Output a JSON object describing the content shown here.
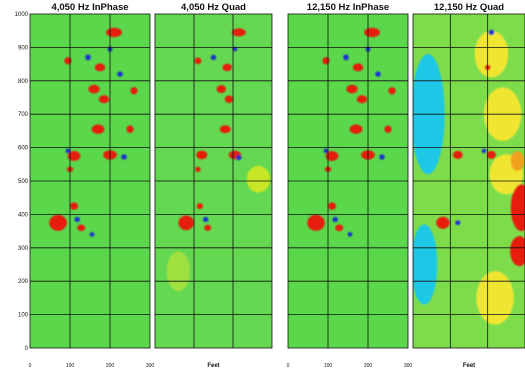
{
  "chart_data": {
    "type": "heatmap",
    "colormap": [
      "#1a32d2",
      "#1fc8e6",
      "#64dc48",
      "#3cd23c",
      "#c8e628",
      "#f0e632",
      "#f0a01e",
      "#e61e10"
    ],
    "panels": [
      {
        "title": "4,050 Hz InPhase",
        "xlabel": "",
        "x_ticks": [
          "0",
          "100",
          "200",
          "300"
        ],
        "y_ticks": [
          "1000",
          "900",
          "800",
          "700",
          "600",
          "500",
          "400",
          "300",
          "200",
          "100",
          "0"
        ],
        "xlim": [
          0,
          300
        ],
        "ylim": [
          0,
          1000
        ],
        "background": "#5ad74a",
        "features": [
          {
            "x": 210,
            "y": 945,
            "sx": 20,
            "sy": 14,
            "color": "#e61e10"
          },
          {
            "x": 95,
            "y": 860,
            "sx": 9,
            "sy": 11,
            "color": "#e61e10"
          },
          {
            "x": 175,
            "y": 840,
            "sx": 13,
            "sy": 12,
            "color": "#e61e10"
          },
          {
            "x": 145,
            "y": 870,
            "sx": 7,
            "sy": 9,
            "color": "#1a32d2"
          },
          {
            "x": 200,
            "y": 895,
            "sx": 6,
            "sy": 8,
            "color": "#1a32d2"
          },
          {
            "x": 225,
            "y": 820,
            "sx": 7,
            "sy": 8,
            "color": "#1a32d2"
          },
          {
            "x": 160,
            "y": 775,
            "sx": 14,
            "sy": 13,
            "color": "#e61e10"
          },
          {
            "x": 185,
            "y": 745,
            "sx": 13,
            "sy": 12,
            "color": "#e61e10"
          },
          {
            "x": 260,
            "y": 770,
            "sx": 9,
            "sy": 11,
            "color": "#e61e10"
          },
          {
            "x": 170,
            "y": 655,
            "sx": 16,
            "sy": 14,
            "color": "#e61e10"
          },
          {
            "x": 250,
            "y": 655,
            "sx": 9,
            "sy": 11,
            "color": "#e61e10"
          },
          {
            "x": 110,
            "y": 575,
            "sx": 16,
            "sy": 15,
            "color": "#e61e10"
          },
          {
            "x": 200,
            "y": 578,
            "sx": 17,
            "sy": 14,
            "color": "#e61e10"
          },
          {
            "x": 95,
            "y": 590,
            "sx": 6,
            "sy": 7,
            "color": "#1a32d2"
          },
          {
            "x": 235,
            "y": 572,
            "sx": 7,
            "sy": 8,
            "color": "#1a32d2"
          },
          {
            "x": 100,
            "y": 535,
            "sx": 8,
            "sy": 8,
            "color": "#e61e10"
          },
          {
            "x": 110,
            "y": 425,
            "sx": 10,
            "sy": 11,
            "color": "#e61e10"
          },
          {
            "x": 70,
            "y": 375,
            "sx": 22,
            "sy": 24,
            "color": "#e61e10"
          },
          {
            "x": 128,
            "y": 360,
            "sx": 10,
            "sy": 10,
            "color": "#e61e10"
          },
          {
            "x": 118,
            "y": 385,
            "sx": 7,
            "sy": 8,
            "color": "#1a32d2"
          },
          {
            "x": 155,
            "y": 340,
            "sx": 6,
            "sy": 7,
            "color": "#1a32d2"
          }
        ]
      },
      {
        "title": "4,050 Hz Quad",
        "xlabel": "Feet",
        "x_ticks": [],
        "y_ticks": [],
        "xlim": [
          0,
          300
        ],
        "ylim": [
          0,
          1000
        ],
        "background": "#64d850",
        "features": [
          {
            "x": 215,
            "y": 945,
            "sx": 18,
            "sy": 12,
            "color": "#e61e10"
          },
          {
            "x": 110,
            "y": 860,
            "sx": 9,
            "sy": 10,
            "color": "#e61e10"
          },
          {
            "x": 185,
            "y": 840,
            "sx": 12,
            "sy": 11,
            "color": "#e61e10"
          },
          {
            "x": 150,
            "y": 870,
            "sx": 7,
            "sy": 8,
            "color": "#1a32d2"
          },
          {
            "x": 205,
            "y": 895,
            "sx": 6,
            "sy": 7,
            "color": "#1a32d2"
          },
          {
            "x": 170,
            "y": 775,
            "sx": 12,
            "sy": 12,
            "color": "#e61e10"
          },
          {
            "x": 190,
            "y": 745,
            "sx": 11,
            "sy": 11,
            "color": "#e61e10"
          },
          {
            "x": 180,
            "y": 655,
            "sx": 14,
            "sy": 12,
            "color": "#e61e10"
          },
          {
            "x": 120,
            "y": 578,
            "sx": 14,
            "sy": 13,
            "color": "#e61e10"
          },
          {
            "x": 205,
            "y": 578,
            "sx": 16,
            "sy": 13,
            "color": "#e61e10"
          },
          {
            "x": 215,
            "y": 570,
            "sx": 7,
            "sy": 8,
            "color": "#1a32d2"
          },
          {
            "x": 110,
            "y": 535,
            "sx": 7,
            "sy": 8,
            "color": "#e61e10"
          },
          {
            "x": 115,
            "y": 425,
            "sx": 8,
            "sy": 9,
            "color": "#e61e10"
          },
          {
            "x": 80,
            "y": 375,
            "sx": 20,
            "sy": 22,
            "color": "#e61e10"
          },
          {
            "x": 135,
            "y": 360,
            "sx": 9,
            "sy": 9,
            "color": "#e61e10"
          },
          {
            "x": 130,
            "y": 385,
            "sx": 7,
            "sy": 8,
            "color": "#1a32d2"
          },
          {
            "x": 265,
            "y": 505,
            "sx": 30,
            "sy": 40,
            "color": "#c8e628"
          },
          {
            "x": 60,
            "y": 230,
            "sx": 30,
            "sy": 60,
            "color": "#a0e040"
          }
        ]
      },
      {
        "title": "12,150 Hz InPhase",
        "xlabel": "",
        "x_ticks": [
          "0",
          "100",
          "200",
          "300"
        ],
        "y_ticks": [],
        "xlim": [
          0,
          300
        ],
        "ylim": [
          0,
          1000
        ],
        "background": "#5ad74a",
        "features": [
          {
            "x": 210,
            "y": 945,
            "sx": 20,
            "sy": 14,
            "color": "#e61e10"
          },
          {
            "x": 95,
            "y": 860,
            "sx": 9,
            "sy": 11,
            "color": "#e61e10"
          },
          {
            "x": 175,
            "y": 840,
            "sx": 13,
            "sy": 12,
            "color": "#e61e10"
          },
          {
            "x": 145,
            "y": 870,
            "sx": 7,
            "sy": 9,
            "color": "#1a32d2"
          },
          {
            "x": 200,
            "y": 895,
            "sx": 6,
            "sy": 8,
            "color": "#1a32d2"
          },
          {
            "x": 225,
            "y": 820,
            "sx": 7,
            "sy": 8,
            "color": "#1a32d2"
          },
          {
            "x": 160,
            "y": 775,
            "sx": 14,
            "sy": 13,
            "color": "#e61e10"
          },
          {
            "x": 185,
            "y": 745,
            "sx": 13,
            "sy": 12,
            "color": "#e61e10"
          },
          {
            "x": 260,
            "y": 770,
            "sx": 9,
            "sy": 11,
            "color": "#e61e10"
          },
          {
            "x": 170,
            "y": 655,
            "sx": 16,
            "sy": 14,
            "color": "#e61e10"
          },
          {
            "x": 250,
            "y": 655,
            "sx": 9,
            "sy": 11,
            "color": "#e61e10"
          },
          {
            "x": 110,
            "y": 575,
            "sx": 16,
            "sy": 15,
            "color": "#e61e10"
          },
          {
            "x": 200,
            "y": 578,
            "sx": 17,
            "sy": 14,
            "color": "#e61e10"
          },
          {
            "x": 95,
            "y": 590,
            "sx": 6,
            "sy": 7,
            "color": "#1a32d2"
          },
          {
            "x": 235,
            "y": 572,
            "sx": 7,
            "sy": 8,
            "color": "#1a32d2"
          },
          {
            "x": 100,
            "y": 535,
            "sx": 8,
            "sy": 8,
            "color": "#e61e10"
          },
          {
            "x": 110,
            "y": 425,
            "sx": 10,
            "sy": 11,
            "color": "#e61e10"
          },
          {
            "x": 70,
            "y": 375,
            "sx": 22,
            "sy": 24,
            "color": "#e61e10"
          },
          {
            "x": 128,
            "y": 360,
            "sx": 10,
            "sy": 10,
            "color": "#e61e10"
          },
          {
            "x": 118,
            "y": 385,
            "sx": 7,
            "sy": 8,
            "color": "#1a32d2"
          },
          {
            "x": 155,
            "y": 340,
            "sx": 6,
            "sy": 7,
            "color": "#1a32d2"
          }
        ]
      },
      {
        "title": "12,150 Hz Quad",
        "xlabel": "Feet",
        "x_ticks": [],
        "y_ticks": [],
        "xlim": [
          0,
          300
        ],
        "ylim": [
          0,
          1000
        ],
        "background": "#7edc4a",
        "features": [
          {
            "x": 40,
            "y": 700,
            "sx": 45,
            "sy": 180,
            "color": "#1fc8e6"
          },
          {
            "x": 30,
            "y": 250,
            "sx": 35,
            "sy": 120,
            "color": "#1fc8e6"
          },
          {
            "x": 210,
            "y": 880,
            "sx": 45,
            "sy": 70,
            "color": "#f0e632"
          },
          {
            "x": 240,
            "y": 700,
            "sx": 50,
            "sy": 80,
            "color": "#f0e632"
          },
          {
            "x": 250,
            "y": 520,
            "sx": 45,
            "sy": 60,
            "color": "#f0e632"
          },
          {
            "x": 220,
            "y": 150,
            "sx": 50,
            "sy": 80,
            "color": "#f0e632"
          },
          {
            "x": 290,
            "y": 420,
            "sx": 28,
            "sy": 70,
            "color": "#e61e10"
          },
          {
            "x": 285,
            "y": 290,
            "sx": 25,
            "sy": 45,
            "color": "#e61e10"
          },
          {
            "x": 280,
            "y": 560,
            "sx": 18,
            "sy": 30,
            "color": "#f0a01e"
          },
          {
            "x": 210,
            "y": 945,
            "sx": 8,
            "sy": 8,
            "color": "#1a32d2"
          },
          {
            "x": 120,
            "y": 578,
            "sx": 13,
            "sy": 12,
            "color": "#e61e10"
          },
          {
            "x": 210,
            "y": 578,
            "sx": 12,
            "sy": 12,
            "color": "#e61e10"
          },
          {
            "x": 190,
            "y": 590,
            "sx": 6,
            "sy": 7,
            "color": "#1a32d2"
          },
          {
            "x": 80,
            "y": 375,
            "sx": 18,
            "sy": 18,
            "color": "#e61e10"
          },
          {
            "x": 120,
            "y": 375,
            "sx": 7,
            "sy": 7,
            "color": "#1a32d2"
          },
          {
            "x": 200,
            "y": 840,
            "sx": 8,
            "sy": 8,
            "color": "#e61e10"
          }
        ]
      }
    ],
    "grid": true
  }
}
